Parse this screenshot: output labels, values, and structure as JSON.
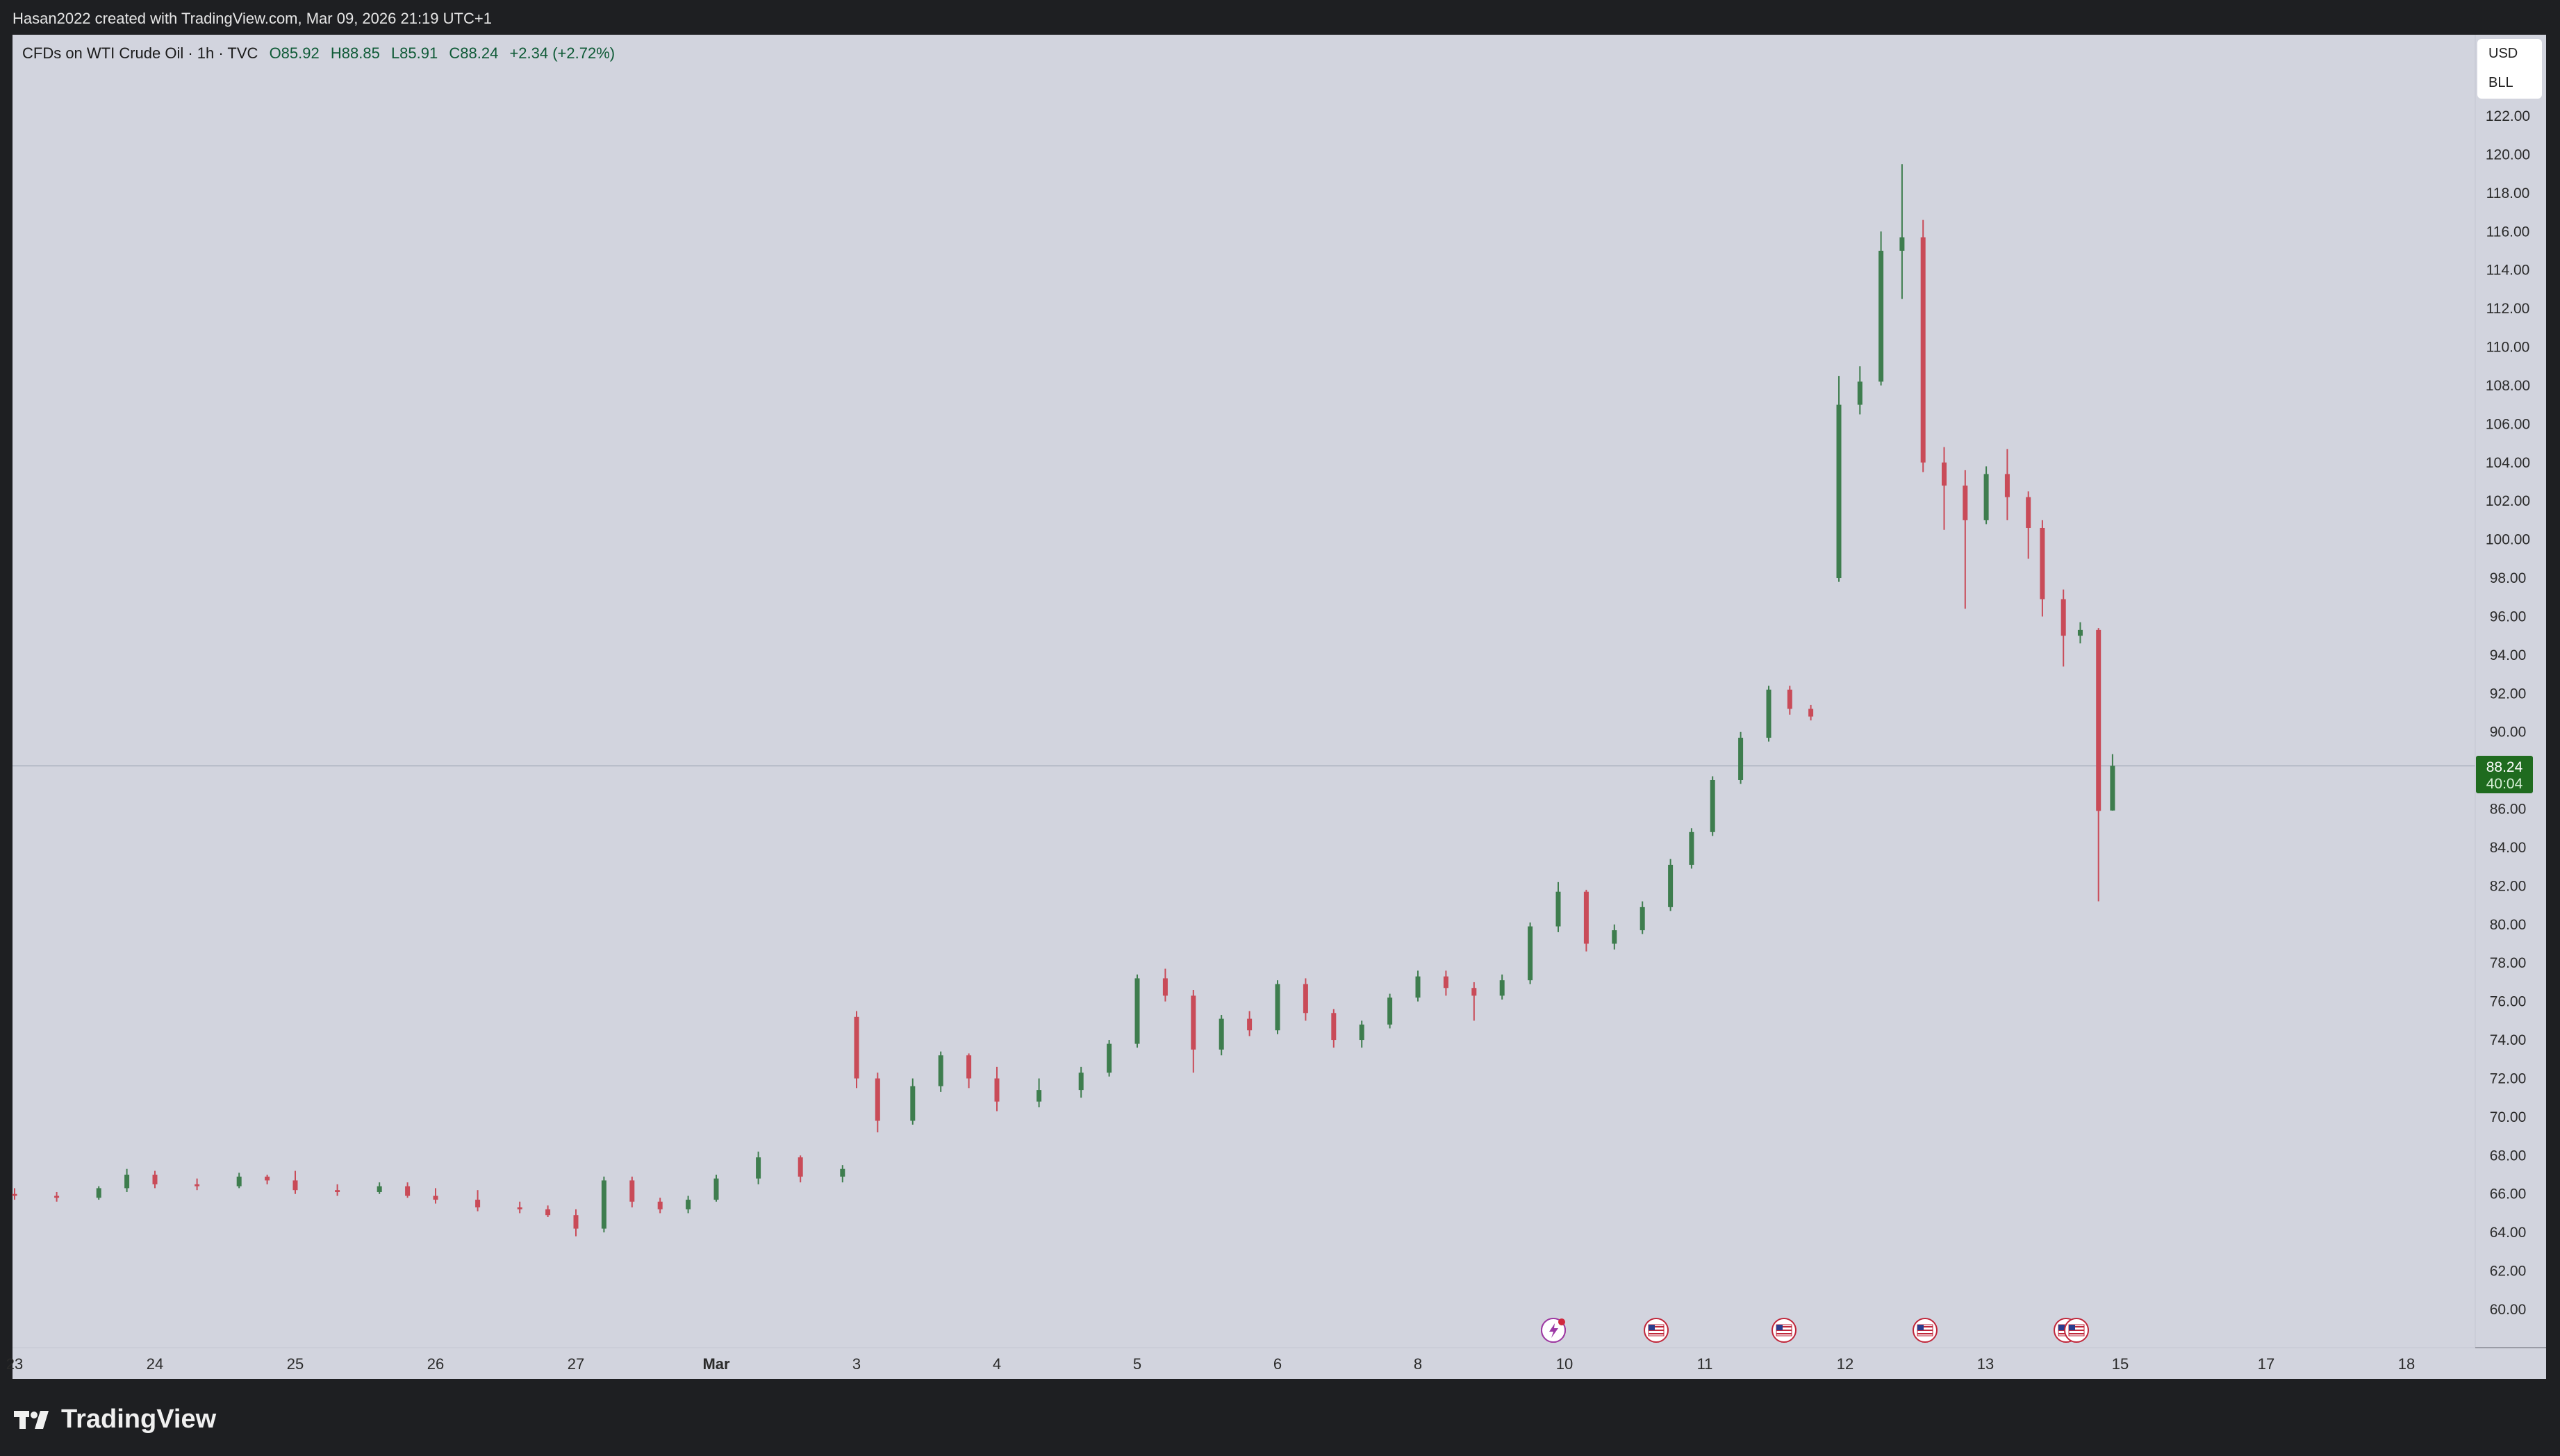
{
  "header": {
    "attribution": "Hasan2022 created with TradingView.com, Mar 09, 2026 21:19 UTC+1"
  },
  "legend": {
    "symbol": "CFDs on WTI Crude Oil · 1h · TVC",
    "open": "O85.92",
    "high": "H88.85",
    "low": "L85.91",
    "close": "C88.24",
    "change": "+2.34 (+2.72%)"
  },
  "units": {
    "currency": "USD",
    "unit": "BLL"
  },
  "price_tag": {
    "price": "88.24",
    "countdown": "40:04"
  },
  "footer": {
    "brand": "TradingView"
  },
  "colors": {
    "up": "#3e7d4e",
    "down": "#c94b58",
    "background": "#d2d4de",
    "tag": "#1f6b1f"
  },
  "event_icons": [
    "lightning-event-icon",
    "us-flag-event-icon",
    "us-flag-event-icon",
    "us-flag-event-icon",
    "us-flag-event-icon",
    "us-flag-event-icon"
  ],
  "chart_data": {
    "type": "candlestick",
    "timeframe": "1h",
    "x_tick_labels": [
      "23",
      "24",
      "25",
      "26",
      "27",
      "Mar",
      "3",
      "4",
      "5",
      "6",
      "8",
      "10",
      "11",
      "12",
      "13",
      "15",
      "17",
      "18"
    ],
    "y_tick_labels": [
      "60.00",
      "62.00",
      "64.00",
      "66.00",
      "68.00",
      "70.00",
      "72.00",
      "74.00",
      "76.00",
      "78.00",
      "80.00",
      "82.00",
      "84.00",
      "86.00",
      "88.00",
      "90.00",
      "92.00",
      "94.00",
      "96.00",
      "98.00",
      "100.00",
      "102.00",
      "104.00",
      "106.00",
      "108.00",
      "110.00",
      "112.00",
      "114.00",
      "116.00",
      "118.00",
      "120.00",
      "122.00"
    ],
    "ylim": [
      58.5,
      123.5
    ],
    "last_price": 88.24,
    "candles": [
      {
        "d": 23.0,
        "o": 66.0,
        "h": 66.3,
        "l": 65.7,
        "c": 65.9
      },
      {
        "d": 23.3,
        "o": 65.9,
        "h": 66.1,
        "l": 65.6,
        "c": 65.8
      },
      {
        "d": 23.6,
        "o": 65.8,
        "h": 66.4,
        "l": 65.7,
        "c": 66.3
      },
      {
        "d": 23.8,
        "o": 66.3,
        "h": 67.3,
        "l": 66.1,
        "c": 67.0
      },
      {
        "d": 24.0,
        "o": 67.0,
        "h": 67.2,
        "l": 66.3,
        "c": 66.5
      },
      {
        "d": 24.3,
        "o": 66.5,
        "h": 66.8,
        "l": 66.2,
        "c": 66.4
      },
      {
        "d": 24.6,
        "o": 66.4,
        "h": 67.1,
        "l": 66.3,
        "c": 66.9
      },
      {
        "d": 24.8,
        "o": 66.9,
        "h": 67.0,
        "l": 66.5,
        "c": 66.7
      },
      {
        "d": 25.0,
        "o": 66.7,
        "h": 67.2,
        "l": 66.0,
        "c": 66.2
      },
      {
        "d": 25.3,
        "o": 66.2,
        "h": 66.5,
        "l": 65.9,
        "c": 66.1
      },
      {
        "d": 25.6,
        "o": 66.1,
        "h": 66.6,
        "l": 66.0,
        "c": 66.4
      },
      {
        "d": 25.8,
        "o": 66.4,
        "h": 66.6,
        "l": 65.8,
        "c": 65.9
      },
      {
        "d": 26.0,
        "o": 65.9,
        "h": 66.3,
        "l": 65.5,
        "c": 65.7
      },
      {
        "d": 26.3,
        "o": 65.7,
        "h": 66.2,
        "l": 65.1,
        "c": 65.3
      },
      {
        "d": 26.6,
        "o": 65.3,
        "h": 65.6,
        "l": 65.0,
        "c": 65.2
      },
      {
        "d": 26.8,
        "o": 65.2,
        "h": 65.4,
        "l": 64.8,
        "c": 64.9
      },
      {
        "d": 27.0,
        "o": 64.9,
        "h": 65.2,
        "l": 63.8,
        "c": 64.2
      },
      {
        "d": 27.2,
        "o": 64.2,
        "h": 66.9,
        "l": 64.0,
        "c": 66.7
      },
      {
        "d": 27.4,
        "o": 66.7,
        "h": 66.9,
        "l": 65.3,
        "c": 65.6
      },
      {
        "d": 27.6,
        "o": 65.6,
        "h": 65.8,
        "l": 65.0,
        "c": 65.2
      },
      {
        "d": 27.8,
        "o": 65.2,
        "h": 65.9,
        "l": 65.0,
        "c": 65.7
      },
      {
        "d": 28.0,
        "o": 65.7,
        "h": 67.0,
        "l": 65.6,
        "c": 66.8
      },
      {
        "d": 28.3,
        "o": 66.8,
        "h": 68.2,
        "l": 66.5,
        "c": 67.9
      },
      {
        "d": 28.6,
        "o": 67.9,
        "h": 68.0,
        "l": 66.6,
        "c": 66.9
      },
      {
        "d": 28.9,
        "o": 66.9,
        "h": 67.5,
        "l": 66.6,
        "c": 67.3
      },
      {
        "d": 29.0,
        "o": 75.2,
        "h": 75.5,
        "l": 71.5,
        "c": 72.0
      },
      {
        "d": 29.15,
        "o": 72.0,
        "h": 72.3,
        "l": 69.2,
        "c": 69.8
      },
      {
        "d": 29.4,
        "o": 69.8,
        "h": 72.0,
        "l": 69.6,
        "c": 71.6
      },
      {
        "d": 29.6,
        "o": 71.6,
        "h": 73.4,
        "l": 71.3,
        "c": 73.2
      },
      {
        "d": 29.8,
        "o": 73.2,
        "h": 73.3,
        "l": 71.5,
        "c": 72.0
      },
      {
        "d": 30.0,
        "o": 72.0,
        "h": 72.6,
        "l": 70.3,
        "c": 70.8
      },
      {
        "d": 30.3,
        "o": 70.8,
        "h": 72.0,
        "l": 70.5,
        "c": 71.4
      },
      {
        "d": 30.6,
        "o": 71.4,
        "h": 72.6,
        "l": 71.0,
        "c": 72.3
      },
      {
        "d": 30.8,
        "o": 72.3,
        "h": 74.0,
        "l": 72.1,
        "c": 73.8
      },
      {
        "d": 31.0,
        "o": 73.8,
        "h": 77.4,
        "l": 73.6,
        "c": 77.2
      },
      {
        "d": 31.2,
        "o": 77.2,
        "h": 77.7,
        "l": 76.0,
        "c": 76.3
      },
      {
        "d": 31.4,
        "o": 76.3,
        "h": 76.6,
        "l": 72.3,
        "c": 73.5
      },
      {
        "d": 31.6,
        "o": 73.5,
        "h": 75.3,
        "l": 73.2,
        "c": 75.1
      },
      {
        "d": 31.8,
        "o": 75.1,
        "h": 75.5,
        "l": 74.2,
        "c": 74.5
      },
      {
        "d": 32.0,
        "o": 74.5,
        "h": 77.1,
        "l": 74.3,
        "c": 76.9
      },
      {
        "d": 32.2,
        "o": 76.9,
        "h": 77.2,
        "l": 75.0,
        "c": 75.4
      },
      {
        "d": 32.4,
        "o": 75.4,
        "h": 75.6,
        "l": 73.6,
        "c": 74.0
      },
      {
        "d": 32.6,
        "o": 74.0,
        "h": 75.0,
        "l": 73.6,
        "c": 74.8
      },
      {
        "d": 32.8,
        "o": 74.8,
        "h": 76.4,
        "l": 74.6,
        "c": 76.2
      },
      {
        "d": 33.0,
        "o": 76.2,
        "h": 77.6,
        "l": 76.0,
        "c": 77.3
      },
      {
        "d": 33.2,
        "o": 77.3,
        "h": 77.6,
        "l": 76.3,
        "c": 76.7
      },
      {
        "d": 33.4,
        "o": 76.7,
        "h": 77.0,
        "l": 75.0,
        "c": 76.3
      },
      {
        "d": 33.6,
        "o": 76.3,
        "h": 77.4,
        "l": 76.1,
        "c": 77.1
      },
      {
        "d": 33.8,
        "o": 77.1,
        "h": 80.1,
        "l": 76.9,
        "c": 79.9
      },
      {
        "d": 34.0,
        "o": 79.9,
        "h": 82.2,
        "l": 79.6,
        "c": 81.7
      },
      {
        "d": 34.2,
        "o": 81.7,
        "h": 81.8,
        "l": 78.6,
        "c": 79.0
      },
      {
        "d": 34.4,
        "o": 79.0,
        "h": 80.0,
        "l": 78.7,
        "c": 79.7
      },
      {
        "d": 34.6,
        "o": 79.7,
        "h": 81.2,
        "l": 79.5,
        "c": 80.9
      },
      {
        "d": 34.8,
        "o": 80.9,
        "h": 83.4,
        "l": 80.7,
        "c": 83.1
      },
      {
        "d": 34.95,
        "o": 83.1,
        "h": 85.0,
        "l": 82.9,
        "c": 84.8
      },
      {
        "d": 35.1,
        "o": 84.8,
        "h": 87.7,
        "l": 84.6,
        "c": 87.5
      },
      {
        "d": 35.3,
        "o": 87.5,
        "h": 90.0,
        "l": 87.3,
        "c": 89.7
      },
      {
        "d": 35.5,
        "o": 89.7,
        "h": 92.4,
        "l": 89.5,
        "c": 92.2
      },
      {
        "d": 35.65,
        "o": 92.2,
        "h": 92.4,
        "l": 90.9,
        "c": 91.2
      },
      {
        "d": 35.8,
        "o": 91.2,
        "h": 91.4,
        "l": 90.6,
        "c": 90.8
      },
      {
        "d": 36.0,
        "o": 98.0,
        "h": 108.5,
        "l": 97.8,
        "c": 107.0
      },
      {
        "d": 36.15,
        "o": 107.0,
        "h": 109.0,
        "l": 106.5,
        "c": 108.2
      },
      {
        "d": 36.3,
        "o": 108.2,
        "h": 116.0,
        "l": 108.0,
        "c": 115.0
      },
      {
        "d": 36.45,
        "o": 115.0,
        "h": 119.5,
        "l": 112.5,
        "c": 115.7
      },
      {
        "d": 36.6,
        "o": 115.7,
        "h": 116.6,
        "l": 103.5,
        "c": 104.0
      },
      {
        "d": 36.75,
        "o": 104.0,
        "h": 104.8,
        "l": 100.5,
        "c": 102.8
      },
      {
        "d": 36.9,
        "o": 102.8,
        "h": 103.6,
        "l": 96.4,
        "c": 101.0
      },
      {
        "d": 37.05,
        "o": 101.0,
        "h": 103.8,
        "l": 100.8,
        "c": 103.4
      },
      {
        "d": 37.2,
        "o": 103.4,
        "h": 104.7,
        "l": 101.0,
        "c": 102.2
      },
      {
        "d": 37.35,
        "o": 102.2,
        "h": 102.5,
        "l": 99.0,
        "c": 100.6
      },
      {
        "d": 37.45,
        "o": 100.6,
        "h": 101.0,
        "l": 96.0,
        "c": 96.9
      },
      {
        "d": 37.6,
        "o": 96.9,
        "h": 97.4,
        "l": 93.4,
        "c": 95.0
      },
      {
        "d": 37.72,
        "o": 95.0,
        "h": 95.7,
        "l": 94.6,
        "c": 95.3
      },
      {
        "d": 37.85,
        "o": 95.3,
        "h": 95.4,
        "l": 81.2,
        "c": 85.9
      },
      {
        "d": 37.95,
        "o": 85.92,
        "h": 88.85,
        "l": 85.91,
        "c": 88.24
      }
    ]
  }
}
